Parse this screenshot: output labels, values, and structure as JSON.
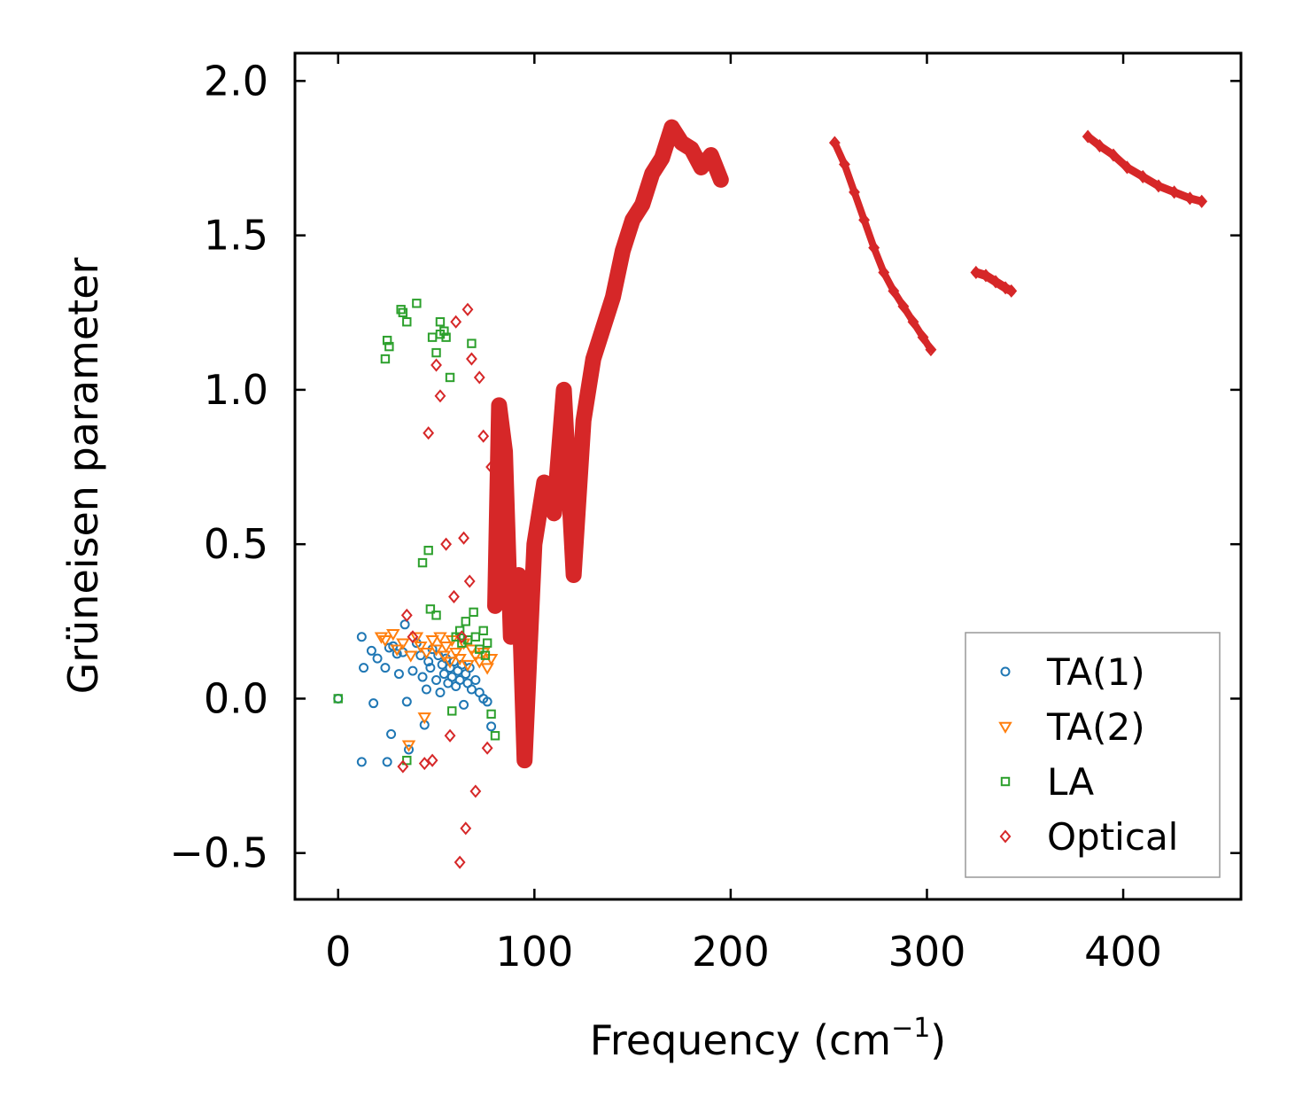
{
  "chart_data": {
    "type": "scatter",
    "title": "",
    "xlabel": "Frequency (cm",
    "xlabel_sup": "−1",
    "xlabel_close": ")",
    "ylabel": "Grüneisen parameter",
    "xlim": [
      -22,
      460
    ],
    "ylim": [
      -0.65,
      2.09
    ],
    "xticks": [
      0,
      100,
      200,
      300,
      400
    ],
    "xtick_labels": [
      "0",
      "100",
      "200",
      "300",
      "400"
    ],
    "yticks": [
      -0.5,
      0.0,
      0.5,
      1.0,
      1.5,
      2.0
    ],
    "ytick_labels": [
      "−0.5",
      "0.0",
      "0.5",
      "1.0",
      "1.5",
      "2.0"
    ],
    "grid": false,
    "legend_position": "bottom-right",
    "series": [
      {
        "name": "TA(1)",
        "label": "TA(1)",
        "marker": "circle",
        "color": "#1f77b4",
        "x": [
          0,
          12,
          12,
          13,
          17,
          18,
          20,
          24,
          25,
          26,
          27,
          28,
          30,
          31,
          33,
          34,
          35,
          36,
          38,
          40,
          42,
          43,
          44,
          45,
          46,
          47,
          48,
          50,
          51,
          52,
          53,
          54,
          55,
          56,
          57,
          58,
          59,
          60,
          61,
          62,
          63,
          64,
          65,
          66,
          67,
          68,
          70,
          72,
          74,
          76,
          78
        ],
        "y": [
          0.0,
          0.2,
          -0.205,
          0.1,
          0.155,
          -0.015,
          0.13,
          0.1,
          -0.205,
          0.165,
          -0.115,
          0.17,
          0.145,
          0.08,
          0.15,
          0.24,
          -0.01,
          -0.165,
          0.09,
          0.18,
          0.14,
          0.07,
          -0.085,
          0.03,
          0.12,
          0.1,
          0.16,
          0.06,
          0.14,
          0.02,
          0.11,
          0.08,
          0.13,
          0.05,
          0.1,
          0.07,
          0.12,
          0.04,
          0.09,
          0.06,
          0.11,
          -0.02,
          0.08,
          0.05,
          0.1,
          0.03,
          0.06,
          0.02,
          0.0,
          -0.01,
          -0.09
        ]
      },
      {
        "name": "TA(2)",
        "label": "TA(2)",
        "marker": "triangle-down",
        "color": "#ff7f0e",
        "x": [
          22,
          24,
          28,
          30,
          33,
          36,
          37,
          40,
          42,
          44,
          45,
          48,
          50,
          52,
          54,
          55,
          57,
          58,
          60,
          62,
          64,
          66,
          68,
          70,
          72,
          74,
          76,
          78
        ],
        "y": [
          0.2,
          0.19,
          0.21,
          0.16,
          0.18,
          -0.15,
          0.14,
          0.2,
          0.17,
          -0.06,
          0.15,
          0.19,
          0.16,
          0.2,
          0.14,
          0.17,
          0.12,
          0.19,
          0.15,
          0.13,
          0.18,
          0.11,
          0.16,
          0.14,
          0.12,
          0.15,
          0.1,
          0.13
        ]
      },
      {
        "name": "LA",
        "label": "LA",
        "marker": "square",
        "color": "#2ca02c",
        "x": [
          0,
          24,
          25,
          26,
          32,
          33,
          35,
          35,
          40,
          43,
          46,
          47,
          48,
          50,
          50,
          52,
          52,
          54,
          55,
          57,
          58,
          60,
          62,
          63,
          65,
          66,
          68,
          69,
          70,
          72,
          74,
          75,
          76,
          78,
          80
        ],
        "y": [
          0.0,
          1.1,
          1.16,
          1.14,
          1.26,
          1.25,
          1.22,
          -0.2,
          1.28,
          0.44,
          0.48,
          0.29,
          1.17,
          1.12,
          0.27,
          1.22,
          1.18,
          1.19,
          1.17,
          1.04,
          -0.04,
          0.2,
          0.22,
          0.18,
          0.25,
          0.19,
          1.15,
          0.28,
          0.2,
          0.16,
          0.22,
          0.14,
          0.18,
          -0.05,
          -0.12
        ]
      },
      {
        "name": "Optical",
        "label": "Optical",
        "marker": "diamond",
        "color": "#d62728",
        "x": [
          33,
          35,
          38,
          44,
          46,
          48,
          50,
          52,
          55,
          57,
          59,
          60,
          62,
          63,
          64,
          65,
          66,
          67,
          68,
          70,
          72,
          74,
          76,
          78,
          80,
          82,
          85,
          88,
          92,
          95,
          100,
          105,
          110,
          115,
          120,
          125,
          130,
          135,
          140,
          145,
          150,
          155,
          160,
          165,
          170,
          175,
          180,
          185,
          190,
          195,
          253,
          258,
          263,
          268,
          273,
          278,
          283,
          288,
          293,
          298,
          302,
          325,
          330,
          335,
          340,
          343,
          382,
          388,
          395,
          402,
          410,
          418,
          426,
          434,
          440
        ],
        "y": [
          -0.22,
          0.27,
          0.2,
          -0.21,
          0.86,
          -0.2,
          1.08,
          0.98,
          0.5,
          -0.12,
          0.33,
          1.22,
          -0.53,
          0.2,
          0.52,
          -0.42,
          1.26,
          0.38,
          1.1,
          -0.3,
          1.04,
          0.85,
          -0.16,
          0.75,
          0.3,
          0.95,
          0.8,
          0.2,
          0.4,
          -0.2,
          0.5,
          0.7,
          0.6,
          1.0,
          0.4,
          0.9,
          1.1,
          1.2,
          1.3,
          1.45,
          1.55,
          1.6,
          1.7,
          1.75,
          1.85,
          1.8,
          1.78,
          1.72,
          1.76,
          1.68,
          1.8,
          1.73,
          1.64,
          1.55,
          1.46,
          1.38,
          1.32,
          1.27,
          1.22,
          1.17,
          1.13,
          1.38,
          1.37,
          1.35,
          1.33,
          1.32,
          1.82,
          1.79,
          1.76,
          1.72,
          1.69,
          1.66,
          1.64,
          1.62,
          1.61
        ]
      }
    ]
  }
}
